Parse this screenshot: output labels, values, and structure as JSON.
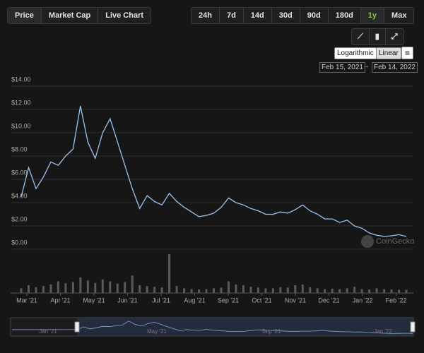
{
  "tabs": [
    "Price",
    "Market Cap",
    "Live Chart"
  ],
  "ranges": [
    "24h",
    "7d",
    "14d",
    "30d",
    "90d",
    "180d",
    "1y",
    "Max"
  ],
  "active_range": "1y",
  "scales": [
    "Logarithmic",
    "Linear"
  ],
  "date_from": "Feb 15, 2021",
  "date_to": "Feb 14, 2022",
  "watermark": "CoinGecko",
  "navigator_labels": [
    "Jan '21",
    "May '21",
    "Sep '21",
    "Jan '22"
  ],
  "chart_data": {
    "type": "line",
    "xticks": [
      "Mar '21",
      "Apr '21",
      "May '21",
      "Jun '21",
      "Jul '21",
      "Aug '21",
      "Sep '21",
      "Oct '21",
      "Nov '21",
      "Dec '21",
      "Jan '22",
      "Feb '22"
    ],
    "ylim": [
      0,
      14
    ],
    "yticks": [
      {
        "value": 0,
        "label": "$0.00"
      },
      {
        "value": 2,
        "label": "$2.00"
      },
      {
        "value": 4,
        "label": "$4.00"
      },
      {
        "value": 6,
        "label": "$6.00"
      },
      {
        "value": 8,
        "label": "$8.00"
      },
      {
        "value": 10,
        "label": "$10.00"
      },
      {
        "value": 12,
        "label": "$12.00"
      },
      {
        "value": 14,
        "label": "$14.00"
      }
    ],
    "grid": true,
    "series": [
      {
        "color": "#9cc3ef",
        "values": [
          4.5,
          7.0,
          5.2,
          6.2,
          7.5,
          7.2,
          8.0,
          8.6,
          12.3,
          9.2,
          7.8,
          10.0,
          11.2,
          9.2,
          7.2,
          5.2,
          3.5,
          4.6,
          4.1,
          3.8,
          4.8,
          4.1,
          3.6,
          3.2,
          2.8,
          2.9,
          3.1,
          3.6,
          4.4,
          4.0,
          3.8,
          3.5,
          3.3,
          3.0,
          3.0,
          3.2,
          3.1,
          3.4,
          3.8,
          3.3,
          3.0,
          2.6,
          2.6,
          2.3,
          2.5,
          2.0,
          1.8,
          1.4,
          1.2,
          1.1,
          1.15,
          1.25,
          1.1
        ]
      }
    ],
    "volume": {
      "color": "#5a5a5e",
      "ylim": [
        0,
        100
      ],
      "values": [
        12,
        20,
        15,
        18,
        22,
        30,
        25,
        28,
        40,
        32,
        26,
        35,
        30,
        24,
        28,
        45,
        20,
        18,
        16,
        14,
        100,
        18,
        12,
        10,
        9,
        10,
        12,
        14,
        30,
        22,
        20,
        16,
        14,
        12,
        12,
        15,
        14,
        20,
        22,
        15,
        12,
        10,
        11,
        10,
        12,
        16,
        10,
        9,
        12,
        10,
        9,
        8,
        8
      ]
    }
  }
}
